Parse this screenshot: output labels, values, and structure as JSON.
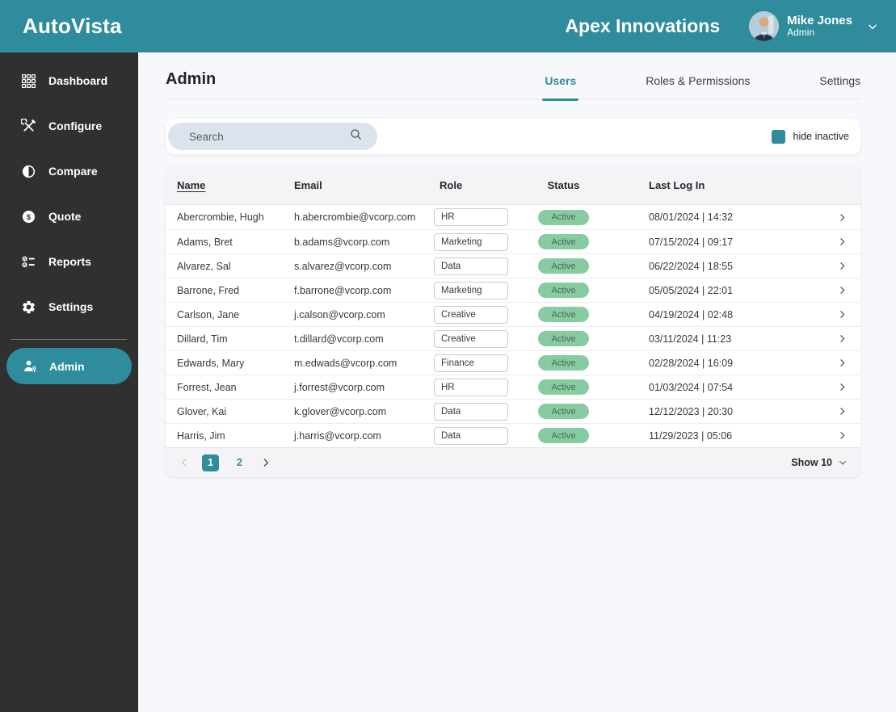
{
  "brand": {
    "logo": "AutoVista",
    "company": "Apex Innovations"
  },
  "user": {
    "name": "Mike Jones",
    "role": "Admin"
  },
  "colors": {
    "accent": "#2E8C9D",
    "sidebar_bg": "#303030",
    "page_bg": "#F7F8FC",
    "badge_bg": "#87CBA0",
    "badge_text": "#4D6757",
    "search_pill": "#DCE3EC",
    "muted_bg": "#F4F4F6",
    "border": "#E4E5EA"
  },
  "sidebar": {
    "items": [
      {
        "label": "Dashboard",
        "icon": "grid-icon"
      },
      {
        "label": "Configure",
        "icon": "tools-icon"
      },
      {
        "label": "Compare",
        "icon": "contrast-icon"
      },
      {
        "label": "Quote",
        "icon": "dollar-icon"
      },
      {
        "label": "Reports",
        "icon": "checklist-icon"
      },
      {
        "label": "Settings",
        "icon": "gear-icon"
      }
    ],
    "admin": {
      "label": "Admin",
      "icon": "user-key-icon",
      "active": true
    }
  },
  "page": {
    "title": "Admin",
    "tabs": [
      {
        "label": "Users",
        "active": true
      },
      {
        "label": "Roles & Permissions",
        "active": false
      },
      {
        "label": "Settings",
        "active": false
      }
    ]
  },
  "search": {
    "placeholder": "Search",
    "value": "",
    "hide_inactive_label": "hide inactive",
    "hide_inactive_checked": true
  },
  "table": {
    "columns": [
      "Name",
      "Email",
      "Role",
      "Status",
      "Last Log In"
    ],
    "rows": [
      {
        "name": "Abercrombie, Hugh",
        "email": "h.abercrombie@vcorp.com",
        "role": "HR",
        "status": "Active",
        "last_login": "08/01/2024 | 14:32"
      },
      {
        "name": "Adams, Bret",
        "email": "b.adams@vcorp.com",
        "role": "Marketing",
        "status": "Active",
        "last_login": "07/15/2024 | 09:17"
      },
      {
        "name": "Alvarez, Sal",
        "email": "s.alvarez@vcorp.com",
        "role": "Data",
        "status": "Active",
        "last_login": "06/22/2024 | 18:55"
      },
      {
        "name": "Barrone, Fred",
        "email": "f.barrone@vcorp.com",
        "role": "Marketing",
        "status": "Active",
        "last_login": "05/05/2024 | 22:01"
      },
      {
        "name": "Carlson, Jane",
        "email": "j.calson@vcorp.com",
        "role": "Creative",
        "status": "Active",
        "last_login": "04/19/2024 | 02:48"
      },
      {
        "name": "Dillard, Tim",
        "email": "t.dillard@vcorp.com",
        "role": "Creative",
        "status": "Active",
        "last_login": "03/11/2024 | 11:23"
      },
      {
        "name": "Edwards, Mary",
        "email": "m.edwads@vcorp.com",
        "role": "Finance",
        "status": "Active",
        "last_login": "02/28/2024 | 16:09"
      },
      {
        "name": "Forrest, Jean",
        "email": "j.forrest@vcorp.com",
        "role": "HR",
        "status": "Active",
        "last_login": "01/03/2024 | 07:54"
      },
      {
        "name": "Glover, Kai",
        "email": "k.glover@vcorp.com",
        "role": "Data",
        "status": "Active",
        "last_login": "12/12/2023 | 20:30"
      },
      {
        "name": "Harris, Jim",
        "email": "j.harris@vcorp.com",
        "role": "Data",
        "status": "Active",
        "last_login": "11/29/2023 | 05:06"
      }
    ]
  },
  "pagination": {
    "pages": [
      "1",
      "2"
    ],
    "current": "1",
    "show_label": "Show 10"
  },
  "icons": {
    "grid-icon": "3x3 square grid",
    "tools-icon": "crossed wrench and screwdriver",
    "contrast-icon": "half-filled circle",
    "dollar-icon": "dollar sign in circle",
    "checklist-icon": "checked list",
    "gear-icon": "gear",
    "user-key-icon": "person with key",
    "search-icon": "magnifier",
    "chevron-down-icon": "chevron down",
    "chevron-right-icon": "chevron right",
    "chevron-left-icon": "chevron left"
  }
}
